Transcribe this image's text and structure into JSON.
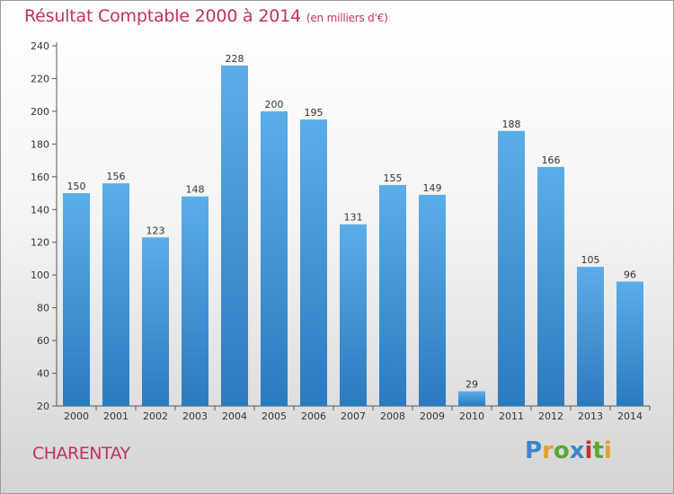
{
  "header": {
    "title": "Résultat Comptable 2000 à 2014",
    "subtitle": "(en milliers d'€)"
  },
  "footer": {
    "city": "CHARENTAY",
    "brand": "Proxiti"
  },
  "colors": {
    "title": "#c0325d",
    "bar_top": "#5aaee8",
    "bar_bottom": "#2a7bbf",
    "brand_letters": [
      "#3a86c9",
      "#e3a12a",
      "#5aa830",
      "#3a86c9",
      "#c9302c",
      "#5aa830",
      "#e3a12a"
    ]
  },
  "chart_data": {
    "type": "bar",
    "categories": [
      "2000",
      "2001",
      "2002",
      "2003",
      "2004",
      "2005",
      "2006",
      "2007",
      "2008",
      "2009",
      "2010",
      "2011",
      "2012",
      "2013",
      "2014"
    ],
    "values": [
      150,
      156,
      123,
      148,
      228,
      200,
      195,
      131,
      155,
      149,
      29,
      188,
      166,
      105,
      96
    ],
    "title": "Résultat Comptable 2000 à 2014",
    "subtitle": "(en milliers d'€)",
    "ylim": [
      20,
      240
    ],
    "yticks": [
      20,
      40,
      60,
      80,
      100,
      120,
      140,
      160,
      180,
      200,
      220,
      240
    ],
    "grid": false,
    "data_labels": true
  }
}
